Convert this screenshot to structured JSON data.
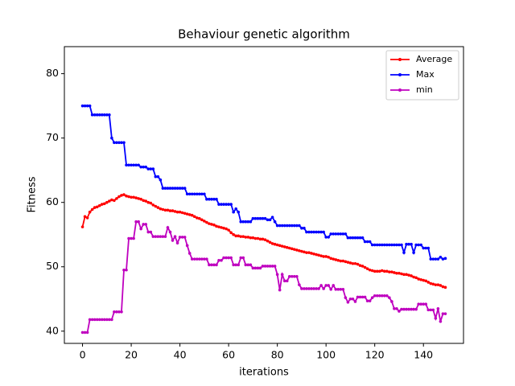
{
  "chart_data": {
    "type": "line",
    "title": "Behaviour genetic algorithm",
    "x_label": "iterations",
    "y_label": "Fitness",
    "x": [
      0,
      1,
      2,
      3,
      4,
      5,
      6,
      7,
      8,
      9,
      10,
      11,
      12,
      13,
      14,
      15,
      16,
      17,
      18,
      19,
      20,
      21,
      22,
      23,
      24,
      25,
      26,
      27,
      28,
      29,
      30,
      31,
      32,
      33,
      34,
      35,
      36,
      37,
      38,
      39,
      40,
      41,
      42,
      43,
      44,
      45,
      46,
      47,
      48,
      49,
      50,
      51,
      52,
      53,
      54,
      55,
      56,
      57,
      58,
      59,
      60,
      61,
      62,
      63,
      64,
      65,
      66,
      67,
      68,
      69,
      70,
      71,
      72,
      73,
      74,
      75,
      76,
      77,
      78,
      79,
      80,
      81,
      82,
      83,
      84,
      85,
      86,
      87,
      88,
      89,
      90,
      91,
      92,
      93,
      94,
      95,
      96,
      97,
      98,
      99,
      100,
      101,
      102,
      103,
      104,
      105,
      106,
      107,
      108,
      109,
      110,
      111,
      112,
      113,
      114,
      115,
      116,
      117,
      118,
      119,
      120,
      121,
      122,
      123,
      124,
      125,
      126,
      127,
      128,
      129,
      130,
      131,
      132,
      133,
      134,
      135,
      136,
      137,
      138,
      139,
      140,
      141,
      142,
      143,
      144,
      145,
      146,
      147,
      148,
      149
    ],
    "series": [
      {
        "name": "Average",
        "color": "#ff0000",
        "values": [
          56.2,
          57.8,
          57.6,
          58.5,
          58.9,
          59.2,
          59.3,
          59.5,
          59.7,
          59.8,
          60.0,
          60.2,
          60.4,
          60.3,
          60.6,
          60.9,
          61.1,
          61.2,
          61.0,
          60.9,
          60.8,
          60.8,
          60.7,
          60.6,
          60.5,
          60.3,
          60.2,
          60.0,
          59.9,
          59.6,
          59.4,
          59.2,
          59.0,
          58.9,
          58.8,
          58.8,
          58.7,
          58.7,
          58.6,
          58.5,
          58.5,
          58.4,
          58.3,
          58.2,
          58.1,
          58.0,
          57.8,
          57.6,
          57.5,
          57.3,
          57.1,
          56.9,
          56.7,
          56.6,
          56.5,
          56.3,
          56.2,
          56.1,
          56.0,
          55.9,
          55.7,
          55.3,
          55.0,
          54.8,
          54.8,
          54.7,
          54.7,
          54.6,
          54.6,
          54.5,
          54.5,
          54.4,
          54.4,
          54.3,
          54.3,
          54.2,
          54.0,
          53.8,
          53.6,
          53.5,
          53.4,
          53.3,
          53.2,
          53.1,
          53.0,
          52.9,
          52.8,
          52.7,
          52.6,
          52.5,
          52.4,
          52.3,
          52.2,
          52.2,
          52.1,
          52.0,
          51.9,
          51.8,
          51.7,
          51.6,
          51.6,
          51.5,
          51.3,
          51.2,
          51.1,
          51.0,
          50.9,
          50.9,
          50.8,
          50.7,
          50.6,
          50.5,
          50.5,
          50.4,
          50.2,
          50.1,
          49.9,
          49.7,
          49.5,
          49.4,
          49.3,
          49.3,
          49.3,
          49.4,
          49.3,
          49.3,
          49.2,
          49.2,
          49.1,
          49.0,
          49.0,
          48.9,
          48.8,
          48.8,
          48.7,
          48.6,
          48.4,
          48.3,
          48.1,
          48.0,
          47.9,
          47.8,
          47.6,
          47.4,
          47.3,
          47.2,
          47.2,
          47.1,
          46.9,
          46.8
        ]
      },
      {
        "name": "Max",
        "color": "#0000ff",
        "values": [
          75,
          75,
          75,
          75,
          73.6,
          73.6,
          73.6,
          73.6,
          73.6,
          73.6,
          73.6,
          73.6,
          70,
          69.3,
          69.3,
          69.3,
          69.3,
          69.3,
          65.8,
          65.8,
          65.8,
          65.8,
          65.8,
          65.8,
          65.5,
          65.5,
          65.5,
          65.2,
          65.2,
          65.2,
          64,
          64,
          63.5,
          62.2,
          62.2,
          62.2,
          62.2,
          62.2,
          62.2,
          62.2,
          62.2,
          62.2,
          62.2,
          61.3,
          61.3,
          61.3,
          61.3,
          61.3,
          61.3,
          61.3,
          61.3,
          60.5,
          60.5,
          60.5,
          60.5,
          60.5,
          59.7,
          59.7,
          59.7,
          59.7,
          59.7,
          59.7,
          58.5,
          59,
          58.5,
          57,
          57,
          57,
          57,
          57,
          57.5,
          57.5,
          57.5,
          57.5,
          57.5,
          57.5,
          57.3,
          57.3,
          57.7,
          57,
          56.4,
          56.4,
          56.4,
          56.4,
          56.4,
          56.4,
          56.4,
          56.4,
          56.4,
          56.4,
          56,
          56,
          55.4,
          55.4,
          55.4,
          55.4,
          55.4,
          55.4,
          55.4,
          55.4,
          54.6,
          54.6,
          55.1,
          55.1,
          55.1,
          55.1,
          55.1,
          55.1,
          55.1,
          54.5,
          54.5,
          54.5,
          54.5,
          54.5,
          54.5,
          54.5,
          53.9,
          53.9,
          53.9,
          53.4,
          53.4,
          53.4,
          53.4,
          53.4,
          53.4,
          53.4,
          53.4,
          53.4,
          53.4,
          53.4,
          53.4,
          53.4,
          52.2,
          53.5,
          53.5,
          53.5,
          52.2,
          53.4,
          53.4,
          53.4,
          52.9,
          52.9,
          52.9,
          51.2,
          51.2,
          51.2,
          51.2,
          51.5,
          51.2,
          51.3
        ]
      },
      {
        "name": "min",
        "color": "#bf00bf",
        "values": [
          39.8,
          39.8,
          39.8,
          41.8,
          41.8,
          41.8,
          41.8,
          41.8,
          41.8,
          41.8,
          41.8,
          41.8,
          41.8,
          43,
          43,
          43,
          43,
          49.5,
          49.5,
          54.4,
          54.4,
          54.4,
          57,
          57,
          55.9,
          56.6,
          56.6,
          55.4,
          55.4,
          54.7,
          54.7,
          54.7,
          54.7,
          54.7,
          54.7,
          56.1,
          55.4,
          54.1,
          54.7,
          53.7,
          54.6,
          54.6,
          54.6,
          53.3,
          52.1,
          51.2,
          51.2,
          51.2,
          51.2,
          51.2,
          51.2,
          51.2,
          50.3,
          50.3,
          50.3,
          50.3,
          51,
          51,
          51.4,
          51.4,
          51.4,
          51.4,
          50.3,
          50.3,
          50.3,
          51.4,
          51.4,
          50.3,
          50.3,
          50.3,
          49.8,
          49.8,
          49.8,
          49.8,
          50.1,
          50.1,
          50.1,
          50.1,
          50.1,
          50.1,
          48.8,
          46.4,
          48.8,
          47.8,
          47.8,
          48.5,
          48.5,
          48.5,
          48.5,
          47.2,
          46.6,
          46.6,
          46.6,
          46.6,
          46.6,
          46.6,
          46.6,
          46.6,
          47.1,
          46.6,
          47.1,
          47.1,
          46.5,
          47.1,
          46.5,
          46.5,
          46.5,
          46.5,
          45.2,
          44.5,
          45,
          45,
          44.6,
          45.3,
          45.3,
          45.3,
          45.3,
          44.7,
          44.7,
          45.2,
          45.5,
          45.5,
          45.5,
          45.5,
          45.5,
          45.5,
          45.2,
          44.6,
          43.5,
          43.5,
          43.1,
          43.4,
          43.4,
          43.4,
          43.4,
          43.4,
          43.4,
          43.4,
          44.2,
          44.2,
          44.2,
          44.2,
          43.3,
          43.3,
          43.3,
          42,
          43.5,
          41.5,
          42.7,
          42.7
        ]
      }
    ],
    "xlim": [
      -7.45,
      156.45
    ],
    "ylim": [
      38.1,
      84.2
    ],
    "xticks": [
      0,
      20,
      40,
      60,
      80,
      100,
      120,
      140
    ],
    "yticks": [
      40,
      50,
      60,
      70,
      80
    ],
    "legend": "upper right",
    "markers": true
  }
}
